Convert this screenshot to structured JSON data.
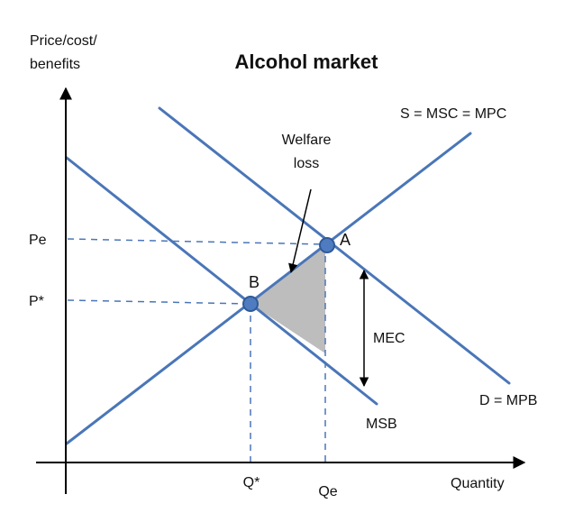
{
  "title": "Alcohol market",
  "axes": {
    "y_label_line1": "Price/cost/",
    "y_label_line2": "benefits",
    "x_label": "Quantity"
  },
  "curves": {
    "supply": "S = MSC = MPC",
    "demand": "D = MPB",
    "msb": "MSB"
  },
  "prices": {
    "pe": "Pe",
    "pstar": "P*"
  },
  "quantities": {
    "qstar": "Q*",
    "qe": "Qe"
  },
  "points": {
    "a": "A",
    "b": "B"
  },
  "annotations": {
    "welfare_loss_line1": "Welfare",
    "welfare_loss_line2": "loss",
    "mec": "MEC"
  },
  "colors": {
    "curve": "#4a76b8",
    "point_fill": "#4f7cc0",
    "point_stroke": "#2f5a99",
    "welfare_fill": "#bdbdbd",
    "axis": "#000000"
  }
}
